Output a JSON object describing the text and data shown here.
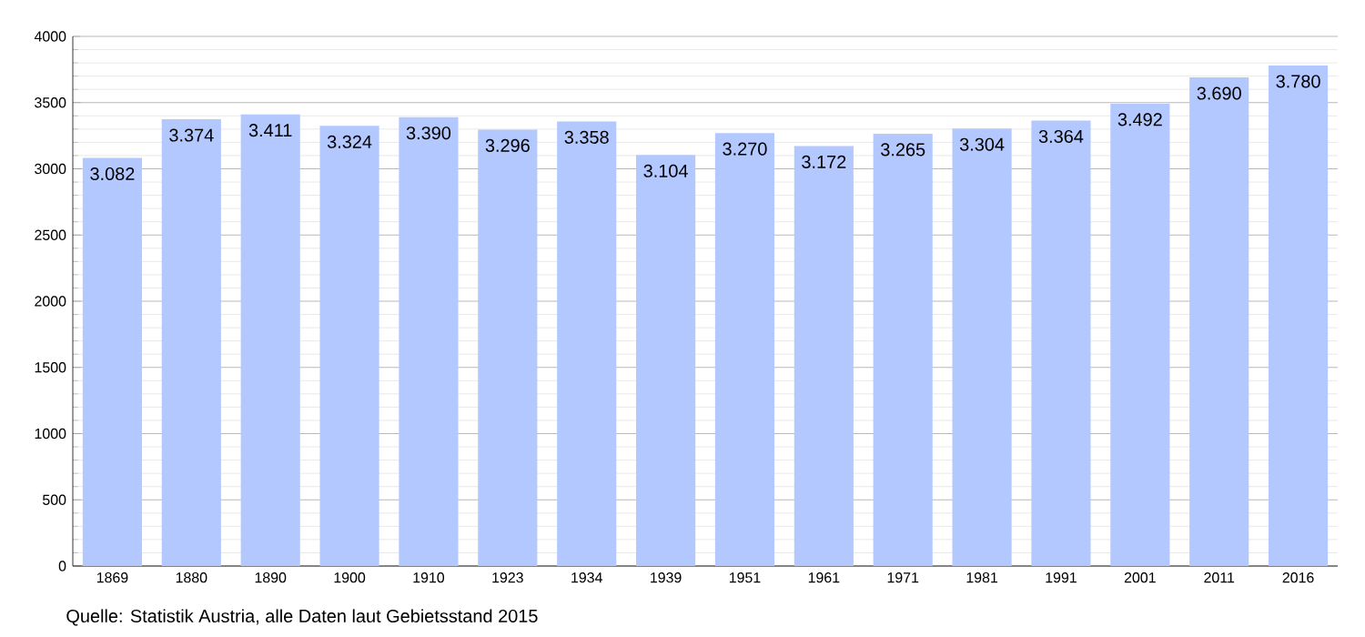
{
  "chart_data": {
    "type": "bar",
    "categories": [
      "1869",
      "1880",
      "1890",
      "1900",
      "1910",
      "1923",
      "1934",
      "1939",
      "1951",
      "1961",
      "1971",
      "1981",
      "1991",
      "2001",
      "2011",
      "2016"
    ],
    "values": [
      3082,
      3374,
      3411,
      3324,
      3390,
      3296,
      3358,
      3104,
      3270,
      3172,
      3265,
      3304,
      3364,
      3492,
      3690,
      3780
    ],
    "value_labels": [
      "3.082",
      "3.374",
      "3.411",
      "3.324",
      "3.390",
      "3.296",
      "3.358",
      "3.104",
      "3.270",
      "3.172",
      "3.265",
      "3.304",
      "3.364",
      "3.492",
      "3.690",
      "3.780"
    ],
    "color": "#b3c8ff",
    "ylim": [
      0,
      4000
    ],
    "yticks": [
      0,
      500,
      1000,
      1500,
      2000,
      2500,
      3000,
      3500,
      4000
    ],
    "grid": "y",
    "annotations": [
      "Quelle: Statistik Austria, alle Daten laut Gebietsstand 2015"
    ]
  }
}
